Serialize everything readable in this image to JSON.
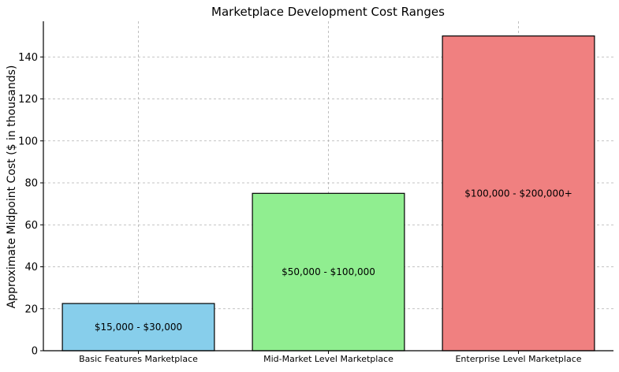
{
  "chart_data": {
    "type": "bar",
    "title": "Marketplace Development Cost Ranges",
    "xlabel": "",
    "ylabel": "Approximate Midpoint Cost ($ in thousands)",
    "categories": [
      "Basic Features Marketplace",
      "Mid-Market Level Marketplace",
      "Enterprise Level Marketplace"
    ],
    "values": [
      22.5,
      75,
      150
    ],
    "bar_labels": [
      "$15,000 - $30,000",
      "$50,000 - $100,000",
      "$100,000 - $200,000+"
    ],
    "colors": [
      "#87ceeb",
      "#90ee90",
      "#f08080"
    ],
    "ylim": [
      0,
      157
    ],
    "yticks": [
      0,
      20,
      40,
      60,
      80,
      100,
      120,
      140
    ],
    "grid": true
  }
}
